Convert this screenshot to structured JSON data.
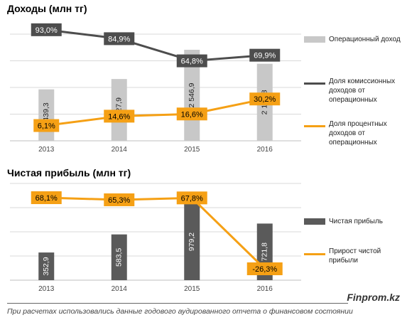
{
  "titles": {
    "top": "Доходы (млн тг)",
    "bottom": "Чистая прибыль (млн тг)"
  },
  "chart_data": [
    {
      "type": "bar+line",
      "title": "Доходы (млн тг)",
      "categories": [
        "2013",
        "2014",
        "2015",
        "2016"
      ],
      "bars": {
        "name": "Операционный доход",
        "values": [
          1439.3,
          1727.9,
          2546.9,
          2154.8
        ],
        "labels": [
          "1 439,3",
          "1 727,9",
          "2 546,9",
          "2 154,8"
        ],
        "color": "#c8c8c8"
      },
      "series": [
        {
          "name": "Доля комиссионных доходов от операционных",
          "values": [
            93.0,
            84.9,
            64.8,
            69.9
          ],
          "labels": [
            "93,0%",
            "84,9%",
            "64,8%",
            "69,9%"
          ],
          "color": "#4d4d4d"
        },
        {
          "name": "Доля процентных доходов от операционных",
          "values": [
            6.1,
            14.6,
            16.6,
            30.2
          ],
          "labels": [
            "6,1%",
            "14,6%",
            "16,6%",
            "30,2%"
          ],
          "color": "#f5a015"
        }
      ],
      "grid": true,
      "legend": "right"
    },
    {
      "type": "bar+line",
      "title": "Чистая прибыль (млн тг)",
      "categories": [
        "2013",
        "2014",
        "2015",
        "2016"
      ],
      "bars": {
        "name": "Чистая прибыль",
        "values": [
          352.9,
          583.5,
          979.2,
          721.8
        ],
        "labels": [
          "352,9",
          "583,5",
          "979,2",
          "721,8"
        ],
        "color": "#5a5a5a"
      },
      "series": [
        {
          "name": "Прирост чистой прибыли",
          "values": [
            68.1,
            65.3,
            67.8,
            -26.3
          ],
          "labels": [
            "68,1%",
            "65,3%",
            "67,8%",
            "-26,3%"
          ],
          "color": "#f5a015"
        }
      ],
      "grid": true,
      "legend": "right"
    }
  ],
  "legend1": {
    "bars": "Операционный доход",
    "line1": "Доля комиссионных доходов от операционных",
    "line2": "Доля процентных доходов от операционных"
  },
  "legend2": {
    "bars": "Чистая прибыль",
    "line1": "Прирост чистой прибыли"
  },
  "brand": "Finprom.kz",
  "footnote": "При расчетах использовались данные годового аудированного отчета о финансовом состоянии"
}
